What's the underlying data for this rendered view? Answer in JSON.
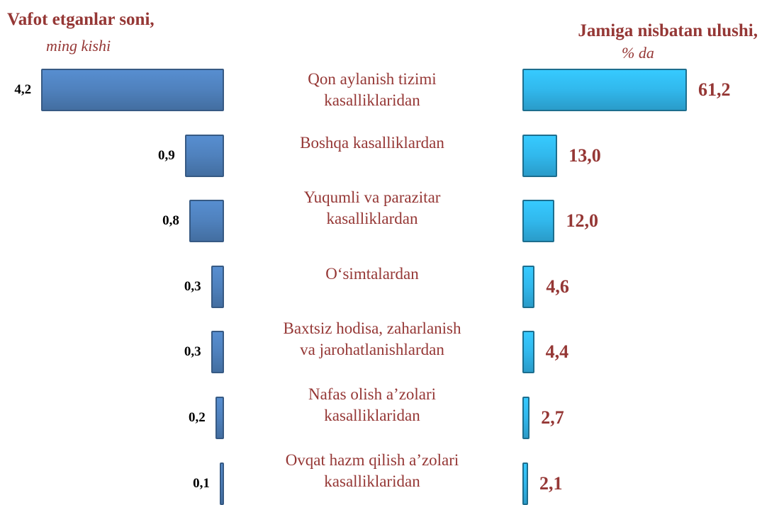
{
  "chart_data": {
    "type": "bar",
    "orientation": "horizontal",
    "categories": [
      "Qon aylanish tizimi\nkasalliklaridan",
      "Boshqa kasalliklardan",
      "Yuqumli va parazitar\nkasalliklardan",
      "O‘simtalardan",
      "Baxtsiz hodisa, zaharlanish\nva jarohatlanishlardan",
      "Nafas olish a’zolari\nkasalliklaridan",
      "Ovqat hazm qilish a’zolari\nkasalliklaridan"
    ],
    "series": [
      {
        "name": "Vafot etganlar soni,",
        "unit": "ming kishi",
        "color": "#4f81bd",
        "values": [
          4.2,
          0.9,
          0.8,
          0.3,
          0.3,
          0.2,
          0.1
        ],
        "value_labels": [
          "4,2",
          "0,9",
          "0,8",
          "0,3",
          "0,3",
          "0,2",
          "0,1"
        ]
      },
      {
        "name": "Jamiga nisbatan ulushi,",
        "unit": "% da",
        "color": "#31b8ec",
        "values": [
          61.2,
          13.0,
          12.0,
          4.6,
          4.4,
          2.7,
          2.1
        ],
        "value_labels": [
          "61,2",
          "13,0",
          "12,0",
          "4,6",
          "4,4",
          "2,7",
          "2,1"
        ]
      }
    ]
  }
}
